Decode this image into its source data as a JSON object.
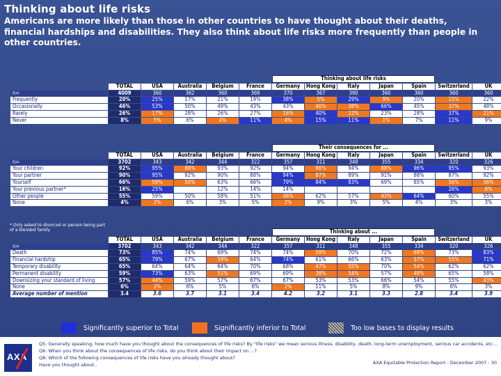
{
  "title": "Thinking about life risks",
  "subtitle": "Americans are more likely than those in other countries to have thought about their deaths, financial hardships and disabilities. They also think about life risks more frequently than people in other countries.",
  "columns": [
    "TOTAL",
    "USA",
    "Australia",
    "Belgium",
    "France",
    "Germany",
    "Hong Kong",
    "Italy",
    "Japan",
    "Spain",
    "Switzerland",
    "UK"
  ],
  "tables": [
    {
      "caption": "Thinking about life risks",
      "n_label": "n=",
      "n": [
        "4009",
        "360",
        "362",
        "360",
        "369",
        "370",
        "367",
        "390",
        "360",
        "360",
        "360",
        "360"
      ],
      "rows": [
        {
          "label": "Frequently",
          "total": "20%",
          "cells": [
            [
              "25%",
              "s"
            ],
            [
              "17%",
              ""
            ],
            [
              "21%",
              ""
            ],
            [
              "19%",
              ""
            ],
            [
              "38%",
              "s"
            ],
            [
              "5%",
              "i"
            ],
            [
              "29%",
              "s"
            ],
            [
              "9%",
              "i"
            ],
            [
              "20%",
              ""
            ],
            [
              "15%",
              "i"
            ],
            [
              "22%",
              ""
            ]
          ]
        },
        {
          "label": "Occasionally",
          "total": "46%",
          "cells": [
            [
              "53%",
              "s"
            ],
            [
              "50%",
              ""
            ],
            [
              "49%",
              ""
            ],
            [
              "43%",
              ""
            ],
            [
              "43%",
              ""
            ],
            [
              "40%",
              "i"
            ],
            [
              "38%",
              "i"
            ],
            [
              "66%",
              "s"
            ],
            [
              "45%",
              ""
            ],
            [
              "37%",
              "i"
            ],
            [
              "48%",
              ""
            ]
          ]
        },
        {
          "label": "Rarely",
          "total": "26%",
          "cells": [
            [
              "17%",
              "i"
            ],
            [
              "28%",
              ""
            ],
            [
              "26%",
              ""
            ],
            [
              "27%",
              ""
            ],
            [
              "16%",
              "i"
            ],
            [
              "40%",
              "s"
            ],
            [
              "22%",
              "i"
            ],
            [
              "23%",
              ""
            ],
            [
              "28%",
              ""
            ],
            [
              "37%",
              "s"
            ],
            [
              "21%",
              "i"
            ]
          ]
        },
        {
          "label": "Never",
          "total": "8%",
          "cells": [
            [
              "5%",
              "i"
            ],
            [
              "6%",
              ""
            ],
            [
              "4%",
              "i"
            ],
            [
              "11%",
              "s"
            ],
            [
              "4%",
              "i"
            ],
            [
              "15%",
              "s"
            ],
            [
              "11%",
              "s"
            ],
            [
              "1%",
              "i"
            ],
            [
              "7%",
              ""
            ],
            [
              "11%",
              "s"
            ],
            [
              "9%",
              ""
            ]
          ]
        }
      ]
    },
    {
      "caption": "Their consequences for ...",
      "n_label": "n=",
      "n": [
        "3702",
        "343",
        "342",
        "344",
        "322",
        "357",
        "311",
        "348",
        "355",
        "334",
        "320",
        "326"
      ],
      "rows": [
        {
          "label": "Your children",
          "total": "92%",
          "cells": [
            [
              "95%",
              "s"
            ],
            [
              "88%",
              "i"
            ],
            [
              "93%",
              ""
            ],
            [
              "92%",
              ""
            ],
            [
              "94%",
              ""
            ],
            [
              "86%",
              "i"
            ],
            [
              "94%",
              ""
            ],
            [
              "88%",
              "i"
            ],
            [
              "96%",
              "s"
            ],
            [
              "95%",
              "s"
            ],
            [
              "93%",
              ""
            ]
          ]
        },
        {
          "label": "Your partner",
          "total": "90%",
          "cells": [
            [
              "95%",
              "s"
            ],
            [
              "92%",
              ""
            ],
            [
              "90%",
              ""
            ],
            [
              "88%",
              ""
            ],
            [
              "94%",
              "s"
            ],
            [
              "87%",
              "i"
            ],
            [
              "89%",
              ""
            ],
            [
              "91%",
              ""
            ],
            [
              "88%",
              ""
            ],
            [
              "87%",
              ""
            ],
            [
              "92%",
              ""
            ]
          ]
        },
        {
          "label": "Yourself",
          "total": "66%",
          "cells": [
            [
              "59%",
              "i"
            ],
            [
              "50%",
              "i"
            ],
            [
              "63%",
              ""
            ],
            [
              "66%",
              ""
            ],
            [
              "79%",
              "s"
            ],
            [
              "84%",
              "s"
            ],
            [
              "83%",
              "s"
            ],
            [
              "69%",
              ""
            ],
            [
              "65%",
              ""
            ],
            [
              "56%",
              "i"
            ],
            [
              "56%",
              "i"
            ]
          ]
        },
        {
          "label": "Your previous partner*",
          "total": "16%",
          "cells": [
            [
              "25%",
              "s"
            ],
            [
              "",
              ""
            ],
            [
              "12%",
              ""
            ],
            [
              "14%",
              ""
            ],
            [
              "14%",
              ""
            ],
            [
              "",
              ""
            ],
            [
              "",
              ""
            ],
            [
              "",
              ""
            ],
            [
              "",
              ""
            ],
            [
              "26%",
              "s"
            ],
            [
              "6%",
              "i"
            ]
          ]
        },
        {
          "label": "Other people",
          "total": "55%",
          "cells": [
            [
              "59%",
              ""
            ],
            [
              "50%",
              ""
            ],
            [
              "58%",
              ""
            ],
            [
              "51%",
              ""
            ],
            [
              "46%",
              "i"
            ],
            [
              "62%",
              ""
            ],
            [
              "57%",
              ""
            ],
            [
              "43%",
              "i"
            ],
            [
              "64%",
              "s"
            ],
            [
              "60%",
              ""
            ],
            [
              "55%",
              ""
            ]
          ]
        },
        {
          "label": "None",
          "total": "4%",
          "cells": [
            [
              "2%",
              "i"
            ],
            [
              "6%",
              ""
            ],
            [
              "3%",
              ""
            ],
            [
              "5%",
              ""
            ],
            [
              "2%",
              "i"
            ],
            [
              "9%",
              ""
            ],
            [
              "3%",
              ""
            ],
            [
              "5%",
              ""
            ],
            [
              "4%",
              ""
            ],
            [
              "3%",
              ""
            ],
            [
              "3%",
              ""
            ]
          ]
        }
      ]
    },
    {
      "caption": "Thinking about ...",
      "n_label": "n=",
      "n": [
        "3702",
        "343",
        "342",
        "344",
        "322",
        "357",
        "311",
        "348",
        "355",
        "334",
        "320",
        "326"
      ],
      "rows": [
        {
          "label": "Death",
          "total": "73%",
          "cells": [
            [
              "85%",
              "s"
            ],
            [
              "74%",
              ""
            ],
            [
              "69%",
              ""
            ],
            [
              "74%",
              ""
            ],
            [
              "74%",
              ""
            ],
            [
              "59%",
              "i"
            ],
            [
              "70%",
              ""
            ],
            [
              "72%",
              ""
            ],
            [
              "69%",
              "i"
            ],
            [
              "73%",
              ""
            ],
            [
              "83%",
              "s"
            ]
          ]
        },
        {
          "label": "Financial hardship",
          "total": "65%",
          "cells": [
            [
              "79%",
              "s"
            ],
            [
              "67%",
              ""
            ],
            [
              "59%",
              "i"
            ],
            [
              "64%",
              ""
            ],
            [
              "74%",
              "s"
            ],
            [
              "61%",
              ""
            ],
            [
              "66%",
              ""
            ],
            [
              "63%",
              ""
            ],
            [
              "57%",
              "i"
            ],
            [
              "55%",
              "i"
            ],
            [
              "71%",
              "s"
            ]
          ]
        },
        {
          "label": "Temporary disability",
          "total": "65%",
          "cells": [
            [
              "64%",
              ""
            ],
            [
              "64%",
              ""
            ],
            [
              "64%",
              ""
            ],
            [
              "70%",
              ""
            ],
            [
              "68%",
              ""
            ],
            [
              "47%",
              "i"
            ],
            [
              "55%",
              "i"
            ],
            [
              "70%",
              ""
            ],
            [
              "54%",
              "i"
            ],
            [
              "62%",
              ""
            ],
            [
              "62%",
              ""
            ]
          ]
        },
        {
          "label": "Permanent disability",
          "total": "59%",
          "cells": [
            [
              "73%",
              "s"
            ],
            [
              "63%",
              ""
            ],
            [
              "51%",
              "i"
            ],
            [
              "69%",
              ""
            ],
            [
              "69%",
              ""
            ],
            [
              "38%",
              "i"
            ],
            [
              "54%",
              "i"
            ],
            [
              "57%",
              ""
            ],
            [
              "48%",
              "i"
            ],
            [
              "65%",
              ""
            ],
            [
              "58%",
              ""
            ]
          ]
        },
        {
          "label": "Downsizing your standard of living",
          "total": "57%",
          "cells": [
            [
              "44%",
              "i"
            ],
            [
              "59%",
              ""
            ],
            [
              "57%",
              ""
            ],
            [
              "67%",
              ""
            ],
            [
              "67%",
              ""
            ],
            [
              "53%",
              ""
            ],
            [
              "53%",
              ""
            ],
            [
              "66%",
              ""
            ],
            [
              "54%",
              ""
            ],
            [
              "55%",
              ""
            ],
            [
              "43%",
              "i"
            ]
          ]
        },
        {
          "label": "None",
          "total": "6%",
          "cells": [
            [
              "2%",
              "i"
            ],
            [
              "6%",
              ""
            ],
            [
              "5%",
              ""
            ],
            [
              "6%",
              ""
            ],
            [
              "2%",
              "i"
            ],
            [
              "11%",
              ""
            ],
            [
              "5%",
              ""
            ],
            [
              "8%",
              ""
            ],
            [
              "9%",
              ""
            ],
            [
              "6%",
              ""
            ],
            [
              "3%",
              ""
            ]
          ]
        },
        {
          "label": "Average number of mention",
          "total": "3.4",
          "avg": true,
          "cells": [
            [
              "3.6",
              ""
            ],
            [
              "3.7",
              ""
            ],
            [
              "3.1",
              ""
            ],
            [
              "3.4",
              ""
            ],
            [
              "4.2",
              ""
            ],
            [
              "3.2",
              ""
            ],
            [
              "3.1",
              ""
            ],
            [
              "3.3",
              ""
            ],
            [
              "2.8",
              ""
            ],
            [
              "3.4",
              ""
            ],
            [
              "3.9",
              ""
            ]
          ]
        }
      ]
    }
  ],
  "note": "* Only asked to divorced or person being part of a blended family",
  "legend": {
    "superior": "Significantly superior to Total",
    "inferior": "Significantly inferior to Total",
    "low_base": "Too low bases to display results",
    "colors": {
      "superior": "#1e2fd6",
      "inferior": "#f37021"
    }
  },
  "footer": {
    "logo": "AXA",
    "questions": [
      "Q5: Generally speaking, how much have you thought about the consequences of life risks? By \"life risks\" we mean serious illness, disability, death, long-term unemployment, serious car accidents, etc...",
      "Q6: When you think about the consequences of life risks, do you think about their impact on ...?",
      "Q8: Which of the following consequences of life risks have you already thought about?",
      "Have you thought about.."
    ],
    "credit": "AXA Equitable Protection Report - December 2007 - 30"
  }
}
